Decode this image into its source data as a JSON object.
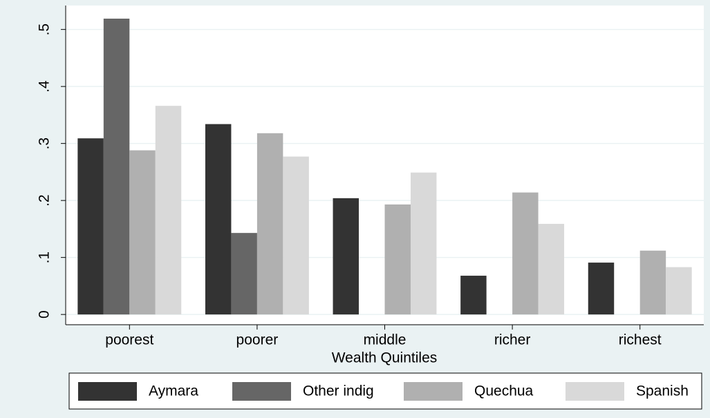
{
  "chart_data": {
    "type": "bar",
    "x_label": "Wealth Quintiles",
    "categories": [
      "poorest",
      "poorer",
      "middle",
      "richer",
      "richest"
    ],
    "series": [
      {
        "name": "Aymara",
        "color": "#333333",
        "values": [
          0.309,
          0.334,
          0.204,
          0.068,
          0.091
        ]
      },
      {
        "name": "Other indig",
        "color": "#666666",
        "values": [
          0.519,
          0.143,
          null,
          null,
          null
        ]
      },
      {
        "name": "Quechua",
        "color": "#b0b0b0",
        "values": [
          0.288,
          0.318,
          0.193,
          0.214,
          0.112
        ]
      },
      {
        "name": "Spanish",
        "color": "#d9d9d9",
        "values": [
          0.366,
          0.277,
          0.249,
          0.159,
          0.083
        ]
      }
    ],
    "ylim": [
      -0.018,
      0.542
    ],
    "yticks": [
      0,
      {
        "value": 0.1,
        "label": ".1"
      },
      {
        "value": 0.2,
        "label": ".2"
      },
      {
        "value": 0.3,
        "label": ".3"
      },
      {
        "value": 0.4,
        "label": ".4"
      },
      {
        "value": 0.5,
        "label": ".5"
      }
    ],
    "grid": true,
    "legend": "bottom"
  }
}
